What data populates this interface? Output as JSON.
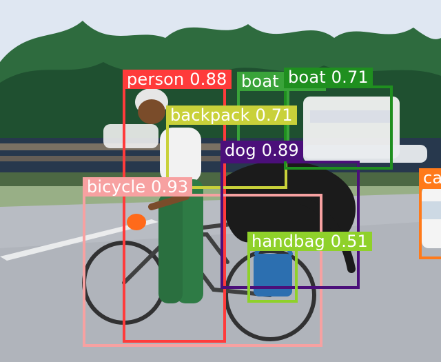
{
  "detections": [
    {
      "id": "person",
      "label": "person 0.88",
      "color": "#ff3b3b"
    },
    {
      "id": "bicycle",
      "label": "bicycle 0.93",
      "color": "#f7a1a1"
    },
    {
      "id": "backpack",
      "label": "backpack 0.71",
      "color": "#c9d13a"
    },
    {
      "id": "dog",
      "label": "dog 0.89",
      "color": "#4b0f7a"
    },
    {
      "id": "boat1",
      "label": "boat 0.55",
      "color": "#3aa33a"
    },
    {
      "id": "boat2",
      "label": "boat 0.71",
      "color": "#1f8f1f"
    },
    {
      "id": "handbag",
      "label": "handbag 0.51",
      "color": "#8fd12a"
    },
    {
      "id": "car",
      "label": "car",
      "color": "#ff7a1a"
    }
  ]
}
